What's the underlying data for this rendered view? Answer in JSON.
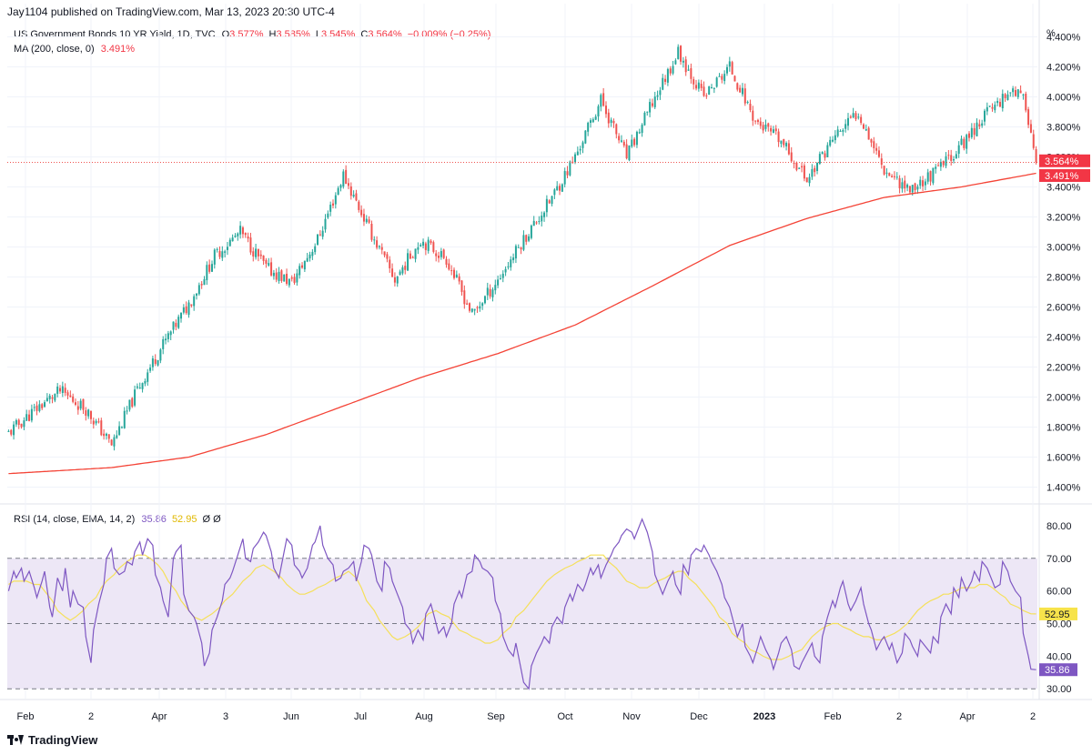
{
  "publisher_line": "Jay1104 published on TradingView.com, Mar 13, 2023 20:30 UTC-4",
  "footer_brand": "TradingView",
  "legend": {
    "symbol": "US Government Bonds 10 YR Yield, 1D, TVC",
    "open_label": "O",
    "open_value": "3.577%",
    "high_label": "H",
    "high_value": "3.585%",
    "low_label": "L",
    "low_value": "3.545%",
    "close_label": "C",
    "close_value": "3.564%",
    "change": "−0.009% (−0.25%)",
    "ma_label": "MA (200, close, 0)",
    "ma_value": "3.491%",
    "rsi_label": "RSI (14, close, EMA, 14, 2)",
    "rsi_value": "35.86",
    "rsi_ma_value": "52.95",
    "rsi_extra": "Ø  Ø"
  },
  "chart_data": [
    {
      "type": "candlestick",
      "title": "US Government Bonds 10 YR Yield, 1D, TVC",
      "ylabel": "%",
      "ylim": [
        1.3,
        4.5
      ],
      "y_ticks": [
        "1.400%",
        "1.600%",
        "1.800%",
        "2.000%",
        "2.200%",
        "2.400%",
        "2.600%",
        "2.800%",
        "3.000%",
        "3.200%",
        "3.400%",
        "3.600%",
        "3.800%",
        "4.000%",
        "4.200%",
        "4.400%"
      ],
      "x_ticks": [
        "Feb",
        "2",
        "Apr",
        "3",
        "Jun",
        "Jul",
        "Aug",
        "Sep",
        "Oct",
        "Nov",
        "Dec",
        "2023",
        "Feb",
        "2",
        "Apr",
        "2"
      ],
      "price_path": [
        [
          0,
          1.76
        ],
        [
          12,
          1.94
        ],
        [
          20,
          2.04
        ],
        [
          30,
          1.92
        ],
        [
          40,
          1.68
        ],
        [
          50,
          2.05
        ],
        [
          60,
          2.35
        ],
        [
          70,
          2.62
        ],
        [
          80,
          2.94
        ],
        [
          90,
          3.1
        ],
        [
          100,
          2.86
        ],
        [
          110,
          2.76
        ],
        [
          120,
          3.05
        ],
        [
          130,
          3.48
        ],
        [
          140,
          3.12
        ],
        [
          150,
          2.78
        ],
        [
          160,
          3.05
        ],
        [
          170,
          2.92
        ],
        [
          180,
          2.55
        ],
        [
          190,
          2.78
        ],
        [
          200,
          3.05
        ],
        [
          210,
          3.3
        ],
        [
          220,
          3.6
        ],
        [
          230,
          3.98
        ],
        [
          240,
          3.6
        ],
        [
          250,
          3.96
        ],
        [
          260,
          4.3
        ],
        [
          270,
          4.0
        ],
        [
          280,
          4.2
        ],
        [
          290,
          3.84
        ],
        [
          300,
          3.7
        ],
        [
          310,
          3.45
        ],
        [
          320,
          3.72
        ],
        [
          330,
          3.9
        ],
        [
          340,
          3.52
        ],
        [
          350,
          3.38
        ],
        [
          360,
          3.5
        ],
        [
          370,
          3.68
        ],
        [
          380,
          3.9
        ],
        [
          390,
          4.06
        ],
        [
          395,
          3.95
        ],
        [
          399,
          3.56
        ]
      ],
      "last_close": 3.564,
      "ma200_path": [
        [
          0,
          1.49
        ],
        [
          40,
          1.53
        ],
        [
          70,
          1.6
        ],
        [
          100,
          1.75
        ],
        [
          130,
          1.94
        ],
        [
          160,
          2.13
        ],
        [
          190,
          2.29
        ],
        [
          220,
          2.48
        ],
        [
          250,
          2.74
        ],
        [
          280,
          3.01
        ],
        [
          310,
          3.19
        ],
        [
          340,
          3.33
        ],
        [
          370,
          3.4
        ],
        [
          399,
          3.491
        ]
      ],
      "ma200_last": 3.491
    },
    {
      "type": "line",
      "title": "RSI (14, close, EMA, 14, 2)",
      "ylim": [
        27,
        85
      ],
      "y_ticks": [
        "30.00",
        "40.00",
        "50.00",
        "60.00",
        "70.00",
        "80.00"
      ],
      "band_upper": 70,
      "band_middle": 50,
      "band_lower": 30,
      "rsi": [
        60,
        66,
        64,
        67,
        63,
        66,
        61,
        58,
        63,
        66,
        55,
        52,
        64,
        60,
        67,
        55,
        60,
        56,
        55,
        46,
        38,
        48,
        56,
        62,
        70,
        73,
        67,
        65,
        66,
        69,
        68,
        72,
        75,
        71,
        76,
        74,
        65,
        61,
        57,
        52,
        70,
        72,
        74,
        59,
        54,
        52,
        50,
        44,
        37,
        41,
        48,
        52,
        57,
        62,
        64,
        66,
        71,
        76,
        70,
        69,
        73,
        75,
        78,
        77,
        72,
        67,
        64,
        72,
        76,
        74,
        68,
        66,
        64,
        67,
        74,
        75,
        80,
        74,
        70,
        68,
        63,
        64,
        66,
        67,
        69,
        63,
        69,
        74,
        73,
        71,
        63,
        60,
        69,
        67,
        63,
        59,
        55,
        50,
        48,
        44,
        48,
        45,
        53,
        56,
        53,
        47,
        49,
        46,
        50,
        56,
        60,
        58,
        65,
        66,
        71,
        69,
        67,
        66,
        64,
        57,
        53,
        46,
        42,
        40,
        44,
        36,
        32,
        30,
        37,
        41,
        44,
        46,
        44,
        49,
        52,
        50,
        55,
        59,
        57,
        62,
        60,
        62,
        67,
        65,
        68,
        64,
        68,
        71,
        73,
        75,
        77,
        79,
        78,
        76,
        80,
        82,
        78,
        72,
        65,
        61,
        59,
        63,
        66,
        62,
        59,
        68,
        65,
        71,
        73,
        72,
        74,
        71,
        69,
        66,
        62,
        58,
        55,
        52,
        46,
        50,
        43,
        40,
        38,
        43,
        46,
        42,
        39,
        36,
        41,
        44,
        46,
        42,
        37,
        36,
        38,
        41,
        44,
        40,
        38,
        46,
        52,
        57,
        55,
        61,
        63,
        56,
        54,
        57,
        61,
        56,
        50,
        48,
        42,
        45,
        46,
        42,
        44,
        38,
        41,
        47,
        45,
        43,
        40,
        45,
        43,
        41,
        46,
        44,
        52,
        56,
        53,
        61,
        58,
        64,
        60,
        63,
        66,
        63,
        69,
        67,
        63,
        61,
        62,
        69,
        66,
        63,
        60,
        58,
        47,
        40,
        36,
        35.86
      ],
      "rsi_ma": [
        62,
        63,
        63,
        63,
        62,
        62,
        60,
        57,
        54,
        52,
        51,
        52,
        54,
        56,
        58,
        61,
        63,
        65,
        67,
        69,
        70,
        71,
        71,
        70,
        68,
        66,
        63,
        60,
        57,
        54,
        52,
        51,
        52,
        53,
        55,
        57,
        59,
        61,
        63,
        65,
        67,
        68,
        67,
        66,
        64,
        62,
        60,
        59,
        59,
        60,
        61,
        62,
        63,
        64,
        65,
        66,
        64,
        61,
        57,
        54,
        51,
        48,
        46,
        45,
        46,
        47,
        49,
        51,
        53,
        54,
        53,
        52,
        50,
        48,
        47,
        46,
        45,
        44,
        44,
        45,
        47,
        49,
        52,
        54,
        56,
        58,
        61,
        63,
        65,
        66,
        67,
        68,
        69,
        70,
        71,
        71,
        71,
        69,
        67,
        65,
        63,
        62,
        61,
        61,
        62,
        63,
        64,
        65,
        66,
        66,
        64,
        62,
        60,
        57,
        55,
        52,
        50,
        47,
        45,
        44,
        42,
        41,
        40,
        39,
        39,
        39,
        40,
        41,
        42,
        44,
        46,
        48,
        49,
        50,
        50,
        49,
        48,
        47,
        46,
        46,
        45,
        45,
        46,
        47,
        48,
        50,
        52,
        54,
        56,
        57,
        58,
        59,
        59,
        60,
        61,
        61,
        61,
        62,
        62,
        61,
        59,
        58,
        56,
        55,
        54,
        53,
        52.95
      ]
    }
  ],
  "badges": {
    "close": "3.564%",
    "ma": "3.491%"
  },
  "colors": {
    "up": "#26a69a",
    "down": "#ef5350",
    "ma": "#f44336",
    "rsi": "#7e57c2",
    "rsi_ma": "#f7e34b",
    "band_fill": "#ede7f6",
    "grid": "#f0f3fa",
    "text": "#131722"
  }
}
